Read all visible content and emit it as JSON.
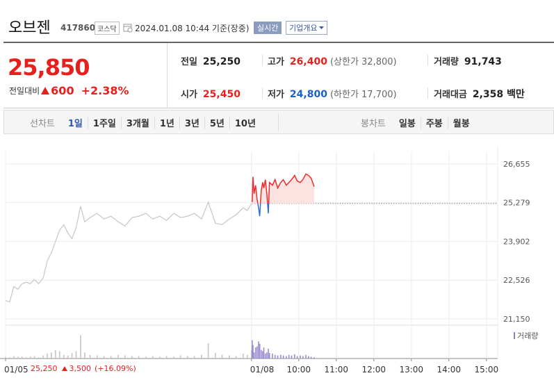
{
  "header": {
    "name": "오브젠",
    "code": "417860",
    "market": "코스닥",
    "timestamp": "2024.01.08 10:44 기준(장중)",
    "realtime_button": "실시간",
    "company_button": "기업개요"
  },
  "quote": {
    "price": "25,850",
    "change_label": "전일대비",
    "change": "600",
    "change_pct": "+2.38%",
    "stats": [
      {
        "label": "전일",
        "value": "25,250",
        "color": "#222222"
      },
      {
        "label": "고가",
        "value": "26,400",
        "note": "(상한가 32,800)",
        "color": "#e6201d"
      },
      {
        "label": "거래량",
        "value": "91,743",
        "color": "#222222"
      },
      {
        "label": "시가",
        "value": "25,450",
        "color": "#e6201d"
      },
      {
        "label": "저가",
        "value": "24,800",
        "note": "(하한가 17,700)",
        "color": "#1a5fc8"
      },
      {
        "label": "거래대금",
        "value": "2,358 백만",
        "color": "#222222"
      }
    ]
  },
  "tabs": {
    "line_label": "선차트",
    "line_periods": [
      "1일",
      "1주일",
      "3개월",
      "1년",
      "3년",
      "5년",
      "10년"
    ],
    "candle_label": "봉차트",
    "candle_periods": [
      "일봉",
      "주봉",
      "월봉"
    ]
  },
  "summary": {
    "close": "25,250",
    "change": "3,500",
    "change_pct": "(+16.09%)"
  },
  "chart_data": {
    "type": "line",
    "xlim": [
      2.19,
      15.3
    ],
    "ylim": [
      21000,
      27100
    ],
    "yticks": [
      {
        "value": 26655,
        "label": "26,655"
      },
      {
        "value": 25279,
        "label": "25,279"
      },
      {
        "value": 23902,
        "label": "23,902"
      },
      {
        "value": 22526,
        "label": "22,526"
      },
      {
        "value": 21150,
        "label": "21,150"
      }
    ],
    "xticks": [
      {
        "value": 2.19,
        "label": "01/05"
      },
      {
        "value": 8.74,
        "label": "01/08"
      },
      {
        "value": 10,
        "label": "10:00"
      },
      {
        "value": 11,
        "label": "11:00"
      },
      {
        "value": 12,
        "label": "12:00"
      },
      {
        "value": 13,
        "label": "13:00"
      },
      {
        "value": 14,
        "label": "14:00"
      },
      {
        "value": 15,
        "label": "15:00"
      }
    ],
    "grid": true,
    "baseline": 25250,
    "volume_label": "거래량",
    "volume_ylim": [
      0,
      50
    ],
    "legend_color": "#8f7fc8",
    "series": [
      {
        "color": "#c6c6c6",
        "volume_color": "#c4c4c4",
        "x": [
          2.19,
          2.3,
          2.41,
          2.52,
          2.63,
          2.74,
          2.85,
          2.96,
          3.07,
          3.19,
          3.3,
          3.41,
          3.52,
          3.63,
          3.74,
          3.85,
          3.96,
          4.07,
          4.19,
          4.3,
          4.44,
          4.63,
          4.81,
          5.0,
          5.19,
          5.37,
          5.56,
          5.74,
          5.93,
          6.11,
          6.3,
          6.48,
          6.67,
          6.85,
          7.04,
          7.22,
          7.41,
          7.59,
          7.78,
          7.96,
          8.15,
          8.33,
          8.52,
          8.63,
          8.74
        ],
        "values": [
          21800,
          21750,
          22300,
          22200,
          22400,
          22450,
          22400,
          22550,
          22400,
          22600,
          23200,
          23500,
          23900,
          24300,
          24500,
          24200,
          24000,
          24400,
          25150,
          24600,
          24750,
          24900,
          24700,
          24800,
          24600,
          24450,
          24750,
          24800,
          24900,
          24700,
          24800,
          24650,
          24900,
          24750,
          24800,
          24900,
          24700,
          25300,
          24550,
          24500,
          24700,
          24850,
          25100,
          25000,
          25250
        ],
        "volume": [
          3,
          2,
          4,
          3,
          3,
          2,
          3,
          4,
          2,
          5,
          8,
          10,
          14,
          12,
          6,
          5,
          9,
          12,
          38,
          10,
          6,
          5,
          4,
          4,
          6,
          5,
          4,
          4,
          3,
          4,
          3,
          4,
          3,
          5,
          4,
          4,
          6,
          25,
          9,
          6,
          5,
          4,
          8,
          6,
          14
        ]
      },
      {
        "color": "#ee2b2b",
        "color_below": "#2a6fd8",
        "area_color": "#fde2e2",
        "volume_color": "#9b8bd0",
        "x": [
          8.76,
          8.78,
          8.81,
          8.85,
          8.89,
          8.93,
          8.96,
          9.0,
          9.04,
          9.07,
          9.11,
          9.15,
          9.19,
          9.22,
          9.3,
          9.37,
          9.44,
          9.52,
          9.59,
          9.67,
          9.74,
          9.81,
          9.89,
          9.96,
          10.04,
          10.11,
          10.19,
          10.26,
          10.33,
          10.41
        ],
        "values": [
          25300,
          26200,
          25600,
          25900,
          25400,
          25100,
          24800,
          25700,
          26000,
          25800,
          26100,
          25600,
          24900,
          26000,
          25900,
          26100,
          25800,
          26000,
          26100,
          25900,
          26000,
          26100,
          26250,
          26050,
          26000,
          26100,
          26300,
          26250,
          26150,
          25850
        ],
        "volume": [
          30,
          22,
          10,
          18,
          20,
          28,
          24,
          14,
          12,
          18,
          8,
          10,
          16,
          9,
          8,
          6,
          5,
          6,
          5,
          4,
          6,
          5,
          7,
          4,
          5,
          4,
          6,
          4,
          3,
          2
        ]
      }
    ]
  }
}
